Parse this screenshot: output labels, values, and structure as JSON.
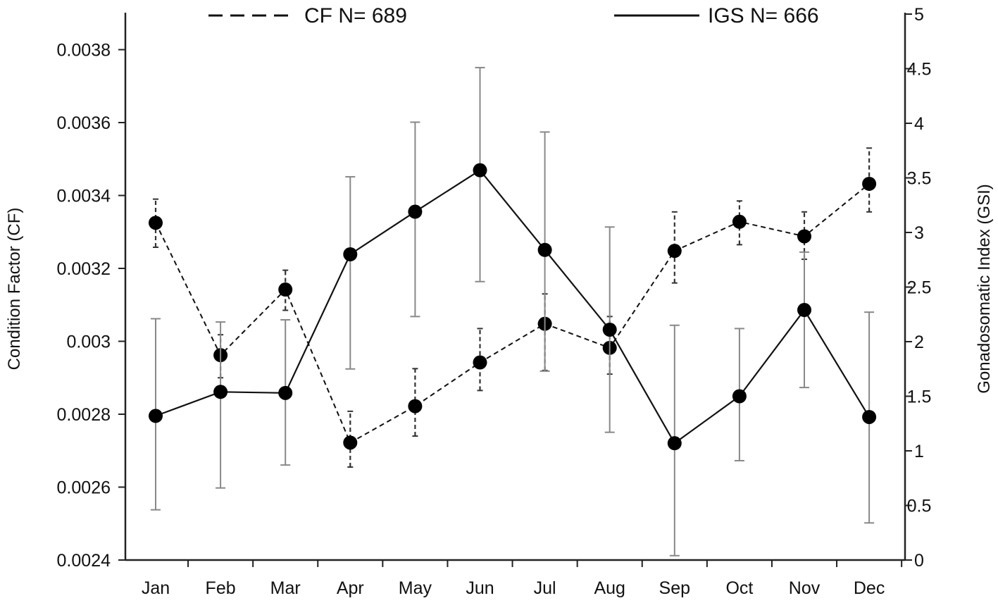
{
  "chart_data": {
    "type": "line",
    "categories": [
      "Jan",
      "Feb",
      "Mar",
      "Apr",
      "May",
      "Jun",
      "Jul",
      "Aug",
      "Sep",
      "Oct",
      "Nov",
      "Dec"
    ],
    "left_axis": {
      "label": "Condition Factor (CF)",
      "range": [
        0.0024,
        0.0039
      ],
      "ticks": [
        0.0024,
        0.0026,
        0.0028,
        0.003,
        0.0032,
        0.0034,
        0.0036,
        0.0038
      ],
      "tick_labels": [
        "0.0024",
        "0.0026",
        "0.0028",
        "0.003",
        "0.0032",
        "0.0034",
        "0.0036",
        "0.0038"
      ]
    },
    "right_axis": {
      "label": "Gonadosomatic Index (GSI)",
      "range": [
        0,
        5
      ],
      "ticks": [
        0,
        0.5,
        1,
        1.5,
        2,
        2.5,
        3,
        3.5,
        4,
        4.5,
        5
      ],
      "tick_labels": [
        "0",
        "0.5",
        "1",
        "1.5",
        "2",
        "2.5",
        "3",
        "3.5",
        "4",
        "4.5",
        "5"
      ]
    },
    "series": [
      {
        "name": "CF",
        "legend_label": "CF  N= 689",
        "axis": "left",
        "line_style": "dashed",
        "values": [
          0.003325,
          0.002962,
          0.003142,
          0.002722,
          0.002822,
          0.002942,
          0.003048,
          0.002982,
          0.003248,
          0.003328,
          0.003288,
          0.003432
        ],
        "err_low": [
          0.003258,
          0.0029,
          0.003085,
          0.002655,
          0.00274,
          0.002865,
          0.00292,
          0.00291,
          0.00316,
          0.003265,
          0.003225,
          0.003355
        ],
        "err_high": [
          0.00339,
          0.003018,
          0.003195,
          0.002808,
          0.002925,
          0.003035,
          0.00313,
          0.003068,
          0.003355,
          0.003385,
          0.003355,
          0.00353
        ]
      },
      {
        "name": "IGS",
        "legend_label": "IGS  N= 666",
        "axis": "right",
        "line_style": "solid",
        "values": [
          1.32,
          1.54,
          1.53,
          2.8,
          3.19,
          3.57,
          2.84,
          2.11,
          1.07,
          1.5,
          2.29,
          1.31
        ],
        "err_low": [
          0.46,
          0.66,
          0.87,
          1.75,
          2.23,
          2.55,
          1.73,
          1.17,
          0.04,
          0.91,
          1.58,
          0.34
        ],
        "err_high": [
          2.21,
          2.18,
          2.2,
          3.51,
          4.01,
          4.51,
          3.92,
          3.05,
          2.15,
          2.12,
          2.82,
          2.27
        ]
      }
    ],
    "grid": false,
    "legend_position": "top"
  }
}
